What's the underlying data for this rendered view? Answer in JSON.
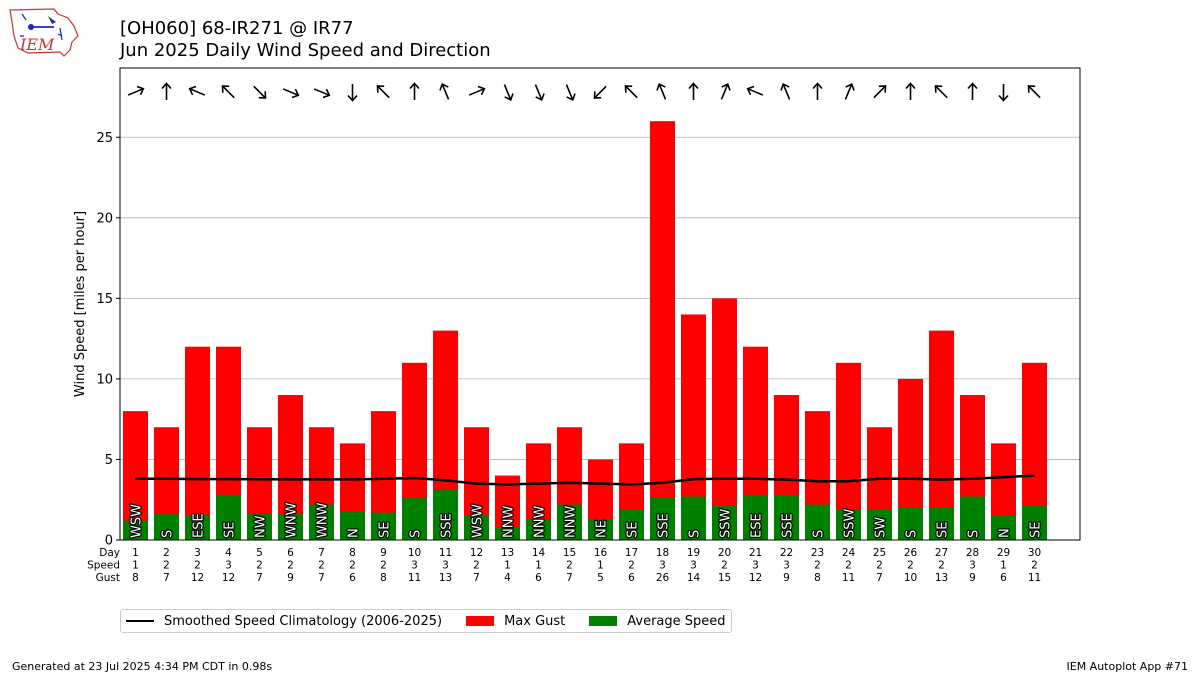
{
  "header": {
    "title": "[OH060] 68-IR271 @ IR77",
    "subtitle": "Jun 2025 Daily Wind Speed and Direction",
    "logo_text": "IEM"
  },
  "footer": {
    "left": "Generated at 23 Jul 2025 4:34 PM CDT in 0.98s",
    "right": "IEM Autoplot App #71"
  },
  "legend": {
    "climatology": "Smoothed Speed Climatology (2006-2025)",
    "gust": "Max Gust",
    "average": "Average Speed"
  },
  "table_labels": {
    "day": "Day",
    "speed": "Speed",
    "gust": "Gust"
  },
  "colors": {
    "gust": "#ff0000",
    "average": "#008000",
    "climatology": "#000000",
    "grid": "#b0b0b0"
  },
  "chart_data": {
    "type": "bar",
    "ylabel": "Wind Speed [miles per hour]",
    "ylim": [
      0,
      29.3
    ],
    "yticks": [
      0,
      5,
      10,
      15,
      20,
      25
    ],
    "grid": true,
    "legend_placement": "bottom",
    "days": [
      1,
      2,
      3,
      4,
      5,
      6,
      7,
      8,
      9,
      10,
      11,
      12,
      13,
      14,
      15,
      16,
      17,
      18,
      19,
      20,
      21,
      22,
      23,
      24,
      25,
      26,
      27,
      28,
      29,
      30
    ],
    "speed_labels": [
      1,
      2,
      2,
      3,
      2,
      2,
      2,
      2,
      2,
      3,
      3,
      2,
      1,
      1,
      2,
      1,
      2,
      3,
      3,
      2,
      3,
      3,
      2,
      2,
      2,
      2,
      2,
      3,
      1,
      2
    ],
    "directions": [
      "WSW",
      "S",
      "ESE",
      "SE",
      "NW",
      "WNW",
      "WNW",
      "N",
      "SE",
      "S",
      "SSE",
      "WSW",
      "NNW",
      "NNW",
      "NNW",
      "NE",
      "SE",
      "SSE",
      "S",
      "SSW",
      "ESE",
      "SSE",
      "S",
      "SSW",
      "SW",
      "S",
      "SE",
      "S",
      "N",
      "SE"
    ],
    "series": [
      {
        "name": "Max Gust",
        "values": [
          8,
          7,
          12,
          12,
          7,
          9,
          7,
          6,
          8,
          11,
          13,
          7,
          4,
          6,
          7,
          5,
          6,
          26,
          14,
          15,
          12,
          9,
          8,
          11,
          7,
          10,
          13,
          9,
          6,
          11
        ]
      },
      {
        "name": "Average Speed",
        "values": [
          1.2,
          1.6,
          1.5,
          2.8,
          1.6,
          1.6,
          2.2,
          1.8,
          1.7,
          2.6,
          3.1,
          1.5,
          0.8,
          1.3,
          2.2,
          1.3,
          1.9,
          2.6,
          2.7,
          2.1,
          2.8,
          2.8,
          2.2,
          1.9,
          1.9,
          2.0,
          2.0,
          2.7,
          1.5,
          2.1
        ]
      },
      {
        "name": "Smoothed Speed Climatology (2006-2025)",
        "values": [
          3.8,
          3.8,
          3.78,
          3.78,
          3.77,
          3.76,
          3.76,
          3.76,
          3.8,
          3.85,
          3.7,
          3.5,
          3.45,
          3.5,
          3.55,
          3.5,
          3.45,
          3.55,
          3.78,
          3.8,
          3.8,
          3.75,
          3.65,
          3.65,
          3.8,
          3.8,
          3.75,
          3.8,
          3.9,
          4.0
        ]
      }
    ]
  }
}
